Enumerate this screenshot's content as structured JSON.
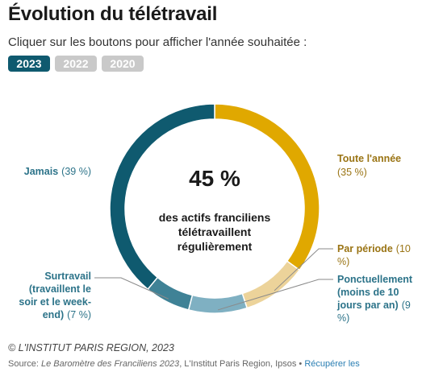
{
  "header": {
    "title": "Évolution du télétravail",
    "subtitle": "Cliquer sur les boutons pour afficher l'année souhaitée :"
  },
  "year_buttons": [
    {
      "label": "2023",
      "active": true
    },
    {
      "label": "2022",
      "active": false
    },
    {
      "label": "2020",
      "active": false
    }
  ],
  "chart_data": {
    "type": "pie",
    "variant": "donut",
    "categories": [
      "Toute l'année",
      "Par période",
      "Ponctuellement (moins de 10 jours par an)",
      "Surtravail (travaillent le soir et le week-end)",
      "Jamais"
    ],
    "values": [
      35,
      10,
      9,
      7,
      39
    ],
    "colors": [
      "#e0a800",
      "#ecd39a",
      "#7fb0c2",
      "#3f8296",
      "#0f5a6f"
    ],
    "center": {
      "value": "45 %",
      "text_lines": [
        "des actifs franciliens",
        "télétravaillent",
        "régulièrement"
      ]
    },
    "labels": [
      {
        "lines": [
          "Toute l'année"
        ],
        "value_text": "(35 %)",
        "color": "#9a7414"
      },
      {
        "lines": [
          "Par période"
        ],
        "value_text": "(10",
        "value_text_2": "%)",
        "color": "#9a7414"
      },
      {
        "lines": [
          "Ponctuellement",
          "(moins de 10",
          "jours par an)"
        ],
        "value_text": "(9",
        "value_text_2": "%)",
        "color": "#2c7389"
      },
      {
        "lines": [
          "Surtravail",
          "(travaillent le",
          "soir et le week-",
          "end)"
        ],
        "value_text": "(7 %)",
        "color": "#2c7389"
      },
      {
        "lines": [
          "Jamais"
        ],
        "value_text": "(39 %)",
        "color": "#2c7389"
      }
    ]
  },
  "footer": {
    "credit": "© L'INSTITUT PARIS REGION, 2023",
    "source_prefix": "Source: ",
    "source_italic": "Le Baromètre des Franciliens 2023",
    "source_rest": ", L'Institut Paris Region, Ipsos",
    "source_separator": " • ",
    "source_link": "Récupérer les"
  }
}
